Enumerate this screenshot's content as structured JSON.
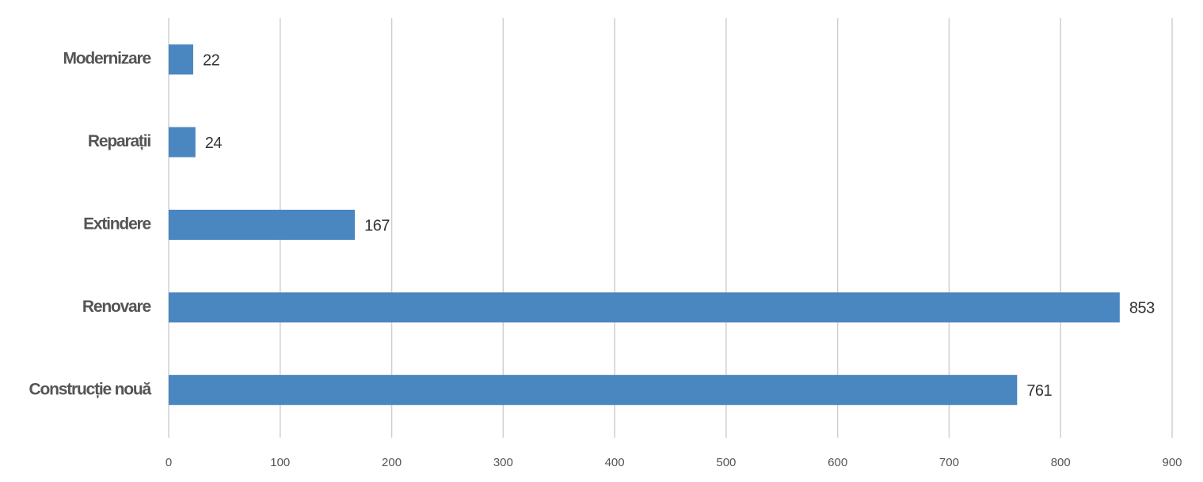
{
  "chart_data": {
    "type": "bar",
    "orientation": "horizontal",
    "categories": [
      "Modernizare",
      "Reparații",
      "Extindere",
      "Renovare",
      "Construcție nouă"
    ],
    "values": [
      22,
      24,
      167,
      853,
      761
    ],
    "color": "#4a86bf",
    "xlim": [
      0,
      900
    ],
    "xticks": [
      0,
      100,
      200,
      300,
      400,
      500,
      600,
      700,
      800,
      900
    ],
    "grid": true
  }
}
